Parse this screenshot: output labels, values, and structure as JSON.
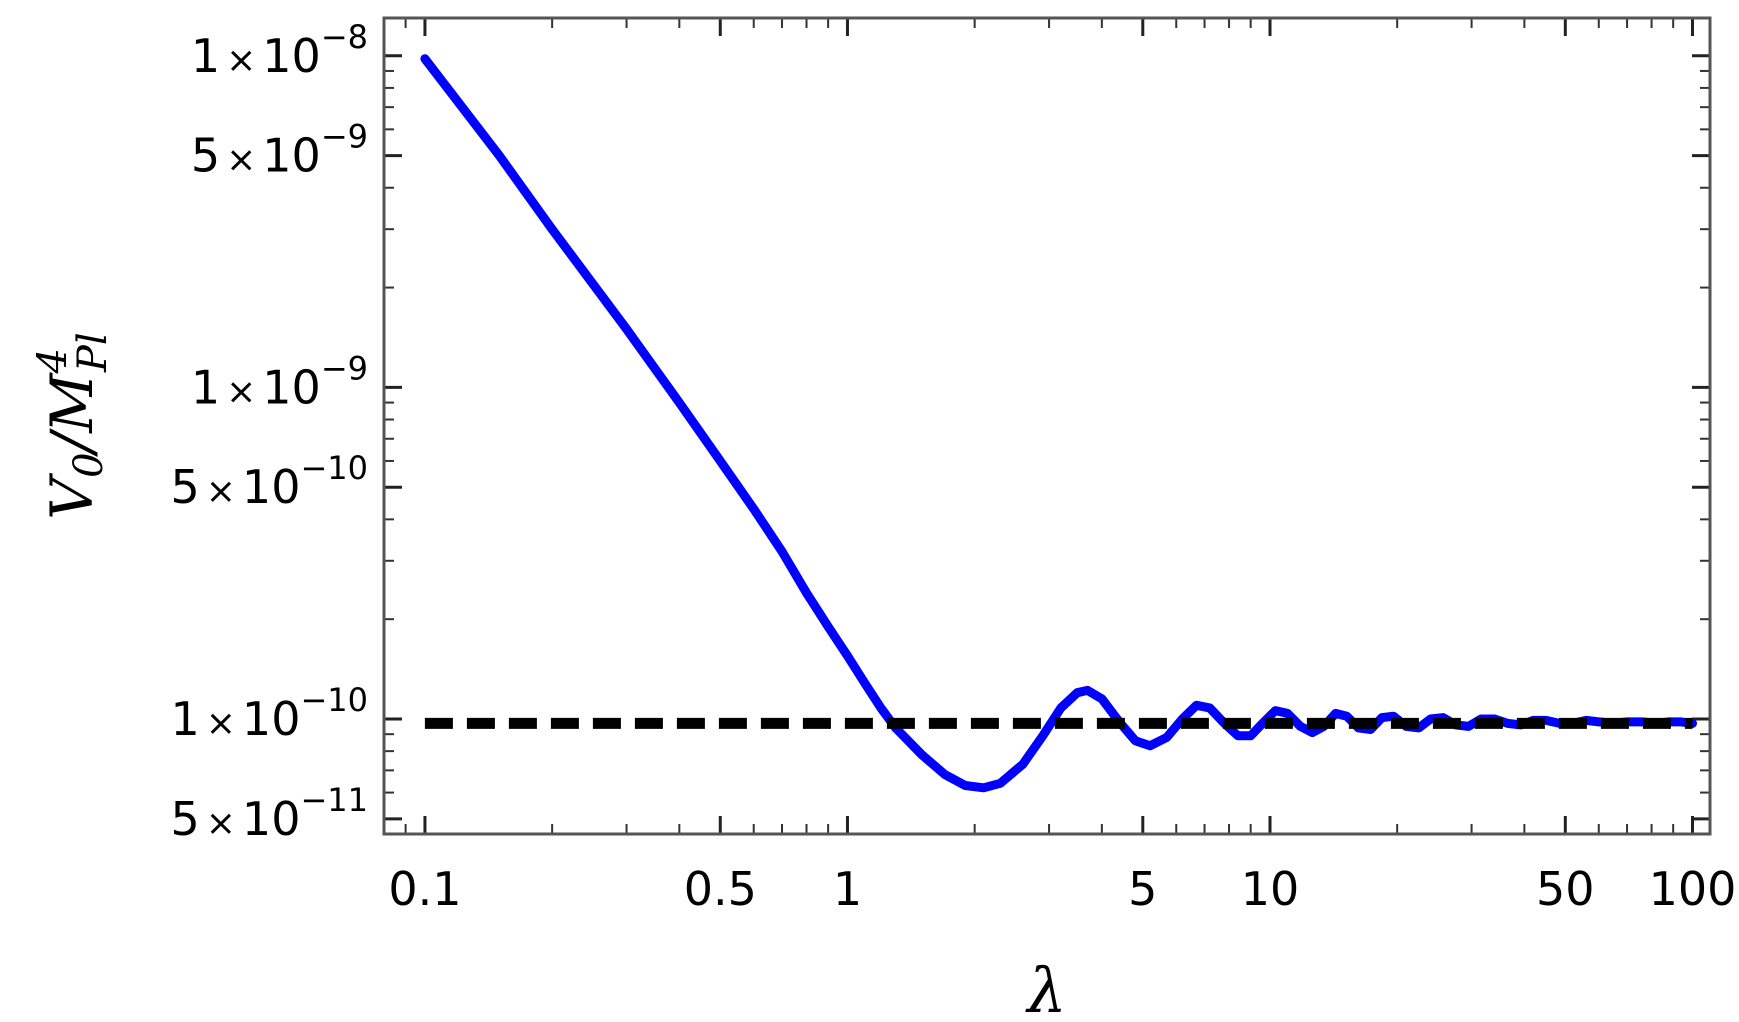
{
  "chart_data": {
    "type": "line",
    "title": "",
    "xlabel": "λ",
    "ylabel": "V0/MPl4",
    "ylabel_parts": {
      "base": "V",
      "base_sub": "0",
      "slash": "/",
      "mass": "M",
      "mass_sup": "4",
      "mass_sub": "Pl"
    },
    "x_scale": "log",
    "y_scale": "log",
    "xlim": [
      0.08,
      110
    ],
    "ylim": [
      4.5e-11,
      1.3e-08
    ],
    "grid": false,
    "legend": "none",
    "x_ticks": [
      {
        "value": 0.1,
        "label": "0.1"
      },
      {
        "value": 0.5,
        "label": "0.5"
      },
      {
        "value": 1,
        "label": "1"
      },
      {
        "value": 5,
        "label": "5"
      },
      {
        "value": 10,
        "label": "10"
      },
      {
        "value": 50,
        "label": "50"
      },
      {
        "value": 100,
        "label": "100"
      }
    ],
    "y_ticks": [
      {
        "value": 1e-08,
        "mantissa": "1",
        "times": "×",
        "base": "10",
        "exponent": "−8"
      },
      {
        "value": 5e-09,
        "mantissa": "5",
        "times": "×",
        "base": "10",
        "exponent": "−9"
      },
      {
        "value": 1e-09,
        "mantissa": "1",
        "times": "×",
        "base": "10",
        "exponent": "−9"
      },
      {
        "value": 5e-10,
        "mantissa": "5",
        "times": "×",
        "base": "10",
        "exponent": "−10"
      },
      {
        "value": 1e-10,
        "mantissa": "1",
        "times": "×",
        "base": "10",
        "exponent": "−10"
      },
      {
        "value": 5e-11,
        "mantissa": "5",
        "times": "×",
        "base": "10",
        "exponent": "−11"
      }
    ],
    "series": [
      {
        "style": "solid",
        "color": "#0000ff",
        "points": [
          [
            0.1,
            9.8e-09
          ],
          [
            0.15,
            5e-09
          ],
          [
            0.2,
            3e-09
          ],
          [
            0.3,
            1.5e-09
          ],
          [
            0.4,
            9e-10
          ],
          [
            0.5,
            6e-10
          ],
          [
            0.6,
            4.3e-10
          ],
          [
            0.7,
            3.2e-10
          ],
          [
            0.8,
            2.4e-10
          ],
          [
            0.9,
            1.9e-10
          ],
          [
            1.0,
            1.55e-10
          ],
          [
            1.1,
            1.28e-10
          ],
          [
            1.2,
            1.08e-10
          ],
          [
            1.3,
            9.4e-11
          ],
          [
            1.5,
            7.8e-11
          ],
          [
            1.7,
            6.8e-11
          ],
          [
            1.9,
            6.3e-11
          ],
          [
            2.1,
            6.2e-11
          ],
          [
            2.3,
            6.4e-11
          ],
          [
            2.6,
            7.3e-11
          ],
          [
            2.9,
            8.9e-11
          ],
          [
            3.2,
            1.08e-10
          ],
          [
            3.5,
            1.2e-10
          ],
          [
            3.7,
            1.22e-10
          ],
          [
            4.0,
            1.15e-10
          ],
          [
            4.4,
            9.8e-11
          ],
          [
            4.8,
            8.6e-11
          ],
          [
            5.2,
            8.3e-11
          ],
          [
            5.7,
            8.8e-11
          ],
          [
            6.2,
            1e-10
          ],
          [
            6.7,
            1.1e-10
          ],
          [
            7.2,
            1.08e-10
          ],
          [
            7.8,
            9.7e-11
          ],
          [
            8.4,
            8.9e-11
          ],
          [
            9.0,
            8.9e-11
          ],
          [
            9.6,
            9.7e-11
          ],
          [
            10.3,
            1.06e-10
          ],
          [
            11.0,
            1.04e-10
          ],
          [
            11.8,
            9.5e-11
          ],
          [
            12.6,
            9.1e-11
          ],
          [
            13.4,
            9.5e-11
          ],
          [
            14.3,
            1.04e-10
          ],
          [
            15.2,
            1.02e-10
          ],
          [
            16.2,
            9.4e-11
          ],
          [
            17.3,
            9.3e-11
          ],
          [
            18.4,
            1.01e-10
          ],
          [
            19.6,
            1.02e-10
          ],
          [
            21.0,
            9.5e-11
          ],
          [
            22.5,
            9.4e-11
          ],
          [
            24.0,
            1e-10
          ],
          [
            25.7,
            1.01e-10
          ],
          [
            27.5,
            9.6e-11
          ],
          [
            29.5,
            9.5e-11
          ],
          [
            31.6,
            1e-10
          ],
          [
            34.0,
            1e-10
          ],
          [
            36.5,
            9.7e-11
          ],
          [
            39.2,
            9.6e-11
          ],
          [
            42.0,
            9.9e-11
          ],
          [
            45.0,
            9.9e-11
          ],
          [
            48.5,
            9.7e-11
          ],
          [
            52.0,
            9.7e-11
          ],
          [
            56.0,
            9.9e-11
          ],
          [
            60.0,
            9.8e-11
          ],
          [
            65.0,
            9.7e-11
          ],
          [
            70.0,
            9.8e-11
          ],
          [
            76.0,
            9.8e-11
          ],
          [
            82.0,
            9.7e-11
          ],
          [
            88.0,
            9.8e-11
          ],
          [
            94.0,
            9.8e-11
          ],
          [
            100.0,
            9.7e-11
          ]
        ]
      },
      {
        "style": "dashed",
        "color": "#000000",
        "points": [
          [
            0.1,
            9.7e-11
          ],
          [
            100.0,
            9.7e-11
          ]
        ]
      }
    ]
  }
}
